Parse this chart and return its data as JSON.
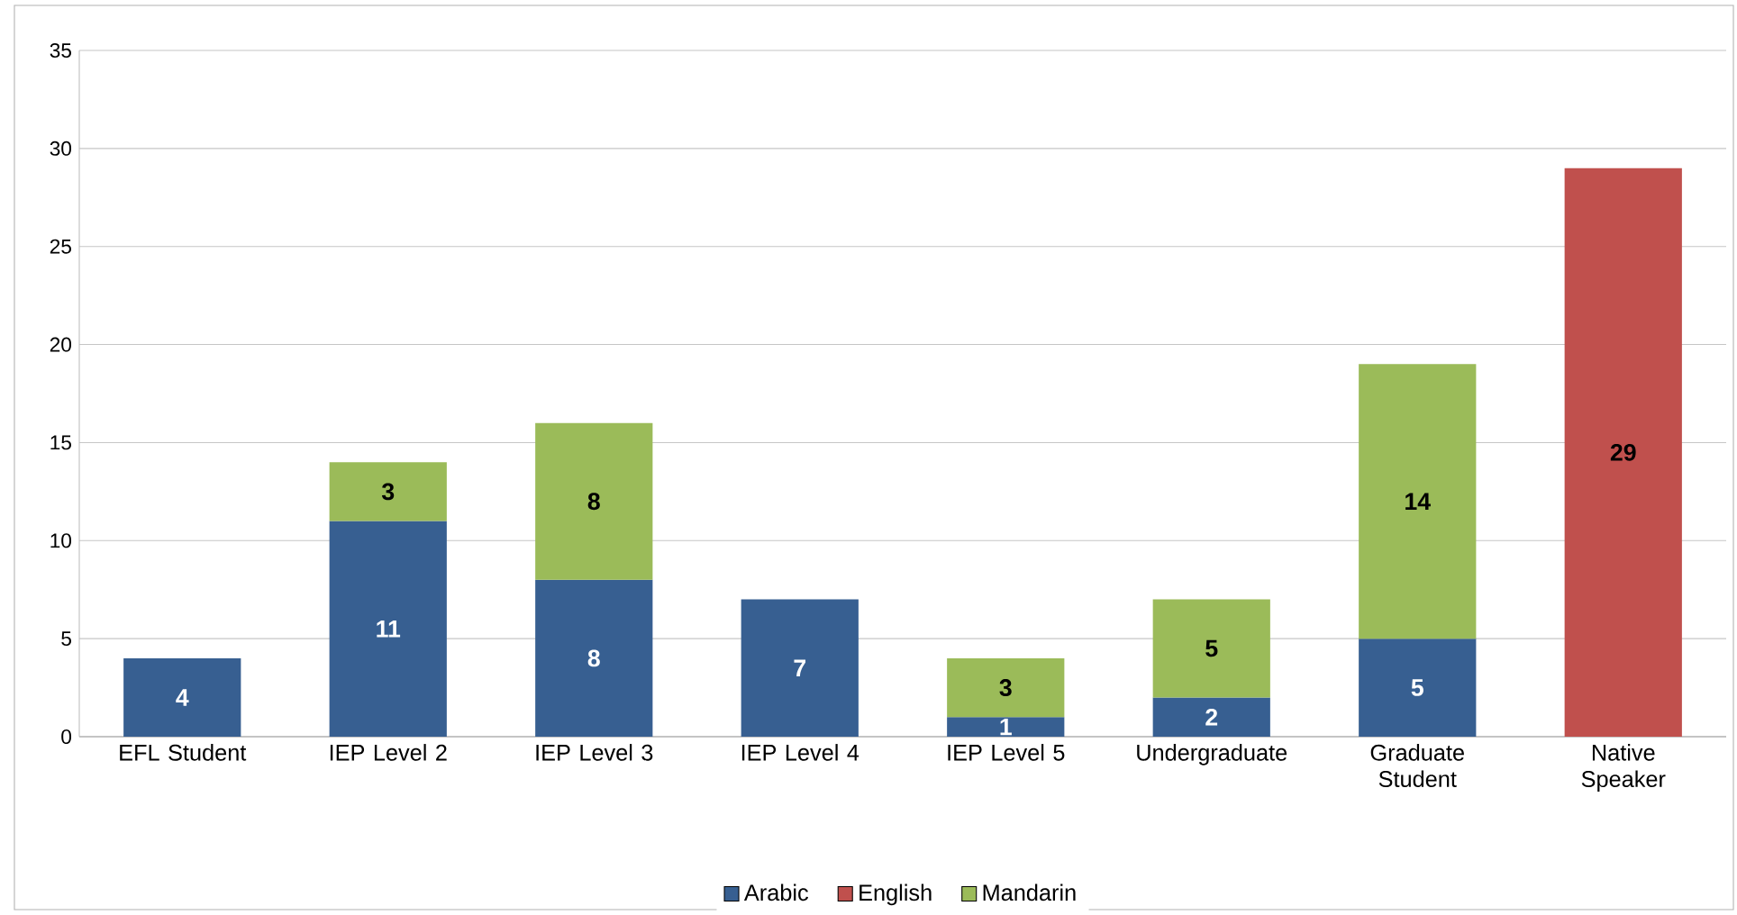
{
  "chart_data": {
    "type": "bar",
    "stacked": true,
    "categories": [
      "EFL Student",
      "IEP Level 2",
      "IEP Level 3",
      "IEP Level 4",
      "IEP Level 5",
      "Undergraduate",
      "Graduate Student",
      "Native Speaker"
    ],
    "series": [
      {
        "name": "Arabic",
        "color": "#375f91",
        "values": [
          4,
          11,
          8,
          7,
          1,
          2,
          5,
          null
        ]
      },
      {
        "name": "English",
        "color": "#c0504d",
        "values": [
          null,
          null,
          null,
          null,
          null,
          null,
          null,
          29
        ]
      },
      {
        "name": "Mandarin",
        "color": "#9bbb59",
        "values": [
          null,
          3,
          8,
          null,
          3,
          5,
          14,
          null
        ]
      }
    ],
    "ylim": [
      0,
      35
    ],
    "yticks": [
      0,
      5,
      10,
      15,
      20,
      25,
      30,
      35
    ],
    "grid": "y",
    "legend": "bottom",
    "data_labels": true
  }
}
